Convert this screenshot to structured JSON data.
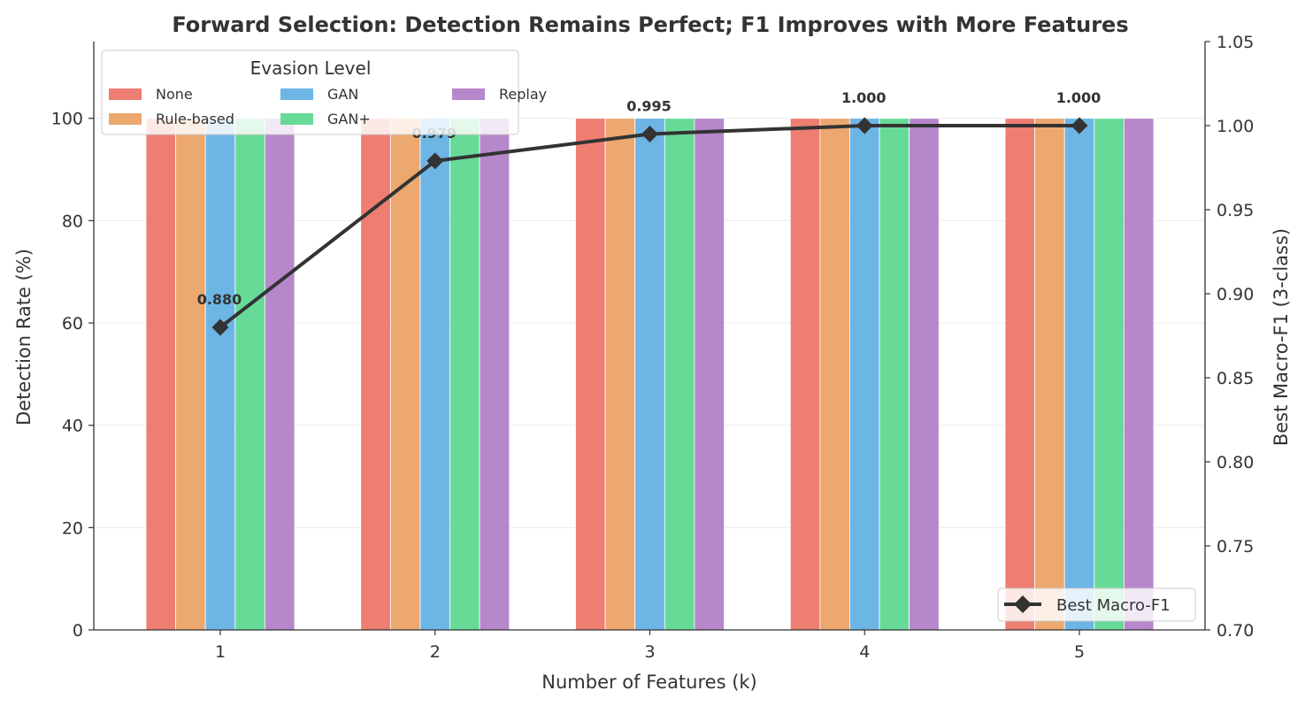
{
  "chart_data": {
    "type": "bar",
    "title": "Forward Selection: Detection Remains Perfect; F1 Improves with More Features",
    "xlabel": "Number of Features (k)",
    "ylabel": "Detection Rate (%)",
    "y2label": "Best Macro-F1 (3-class)",
    "categories": [
      "1",
      "2",
      "3",
      "4",
      "5"
    ],
    "ylim": [
      0,
      115
    ],
    "y2lim": [
      0.7,
      1.05
    ],
    "yticks": [
      "0",
      "20",
      "40",
      "60",
      "80",
      "100"
    ],
    "y2ticks": [
      "0.70",
      "0.75",
      "0.80",
      "0.85",
      "0.90",
      "0.95",
      "1.00",
      "1.05"
    ],
    "legend_title": "Evasion Level",
    "legend_position": "upper-left",
    "grid": true,
    "series": [
      {
        "name": "None",
        "color": "#ec7063",
        "values": [
          100,
          100,
          100,
          100,
          100
        ]
      },
      {
        "name": "Rule-based",
        "color": "#eb9f5f",
        "values": [
          100,
          100,
          100,
          100,
          100
        ]
      },
      {
        "name": "GAN",
        "color": "#5dade2",
        "values": [
          100,
          100,
          100,
          100,
          100
        ]
      },
      {
        "name": "GAN+",
        "color": "#58d68d",
        "values": [
          100,
          100,
          100,
          100,
          100
        ]
      },
      {
        "name": "Replay",
        "color": "#af7ac5",
        "values": [
          100,
          100,
          100,
          100,
          100
        ]
      }
    ],
    "line_series": {
      "name": "Best Macro-F1",
      "color": "#333333",
      "values": [
        0.88,
        0.979,
        0.995,
        1.0,
        1.0
      ],
      "labels": [
        "0.880",
        "0.979",
        "0.995",
        "1.000",
        "1.000"
      ],
      "legend_position": "lower-right"
    }
  }
}
